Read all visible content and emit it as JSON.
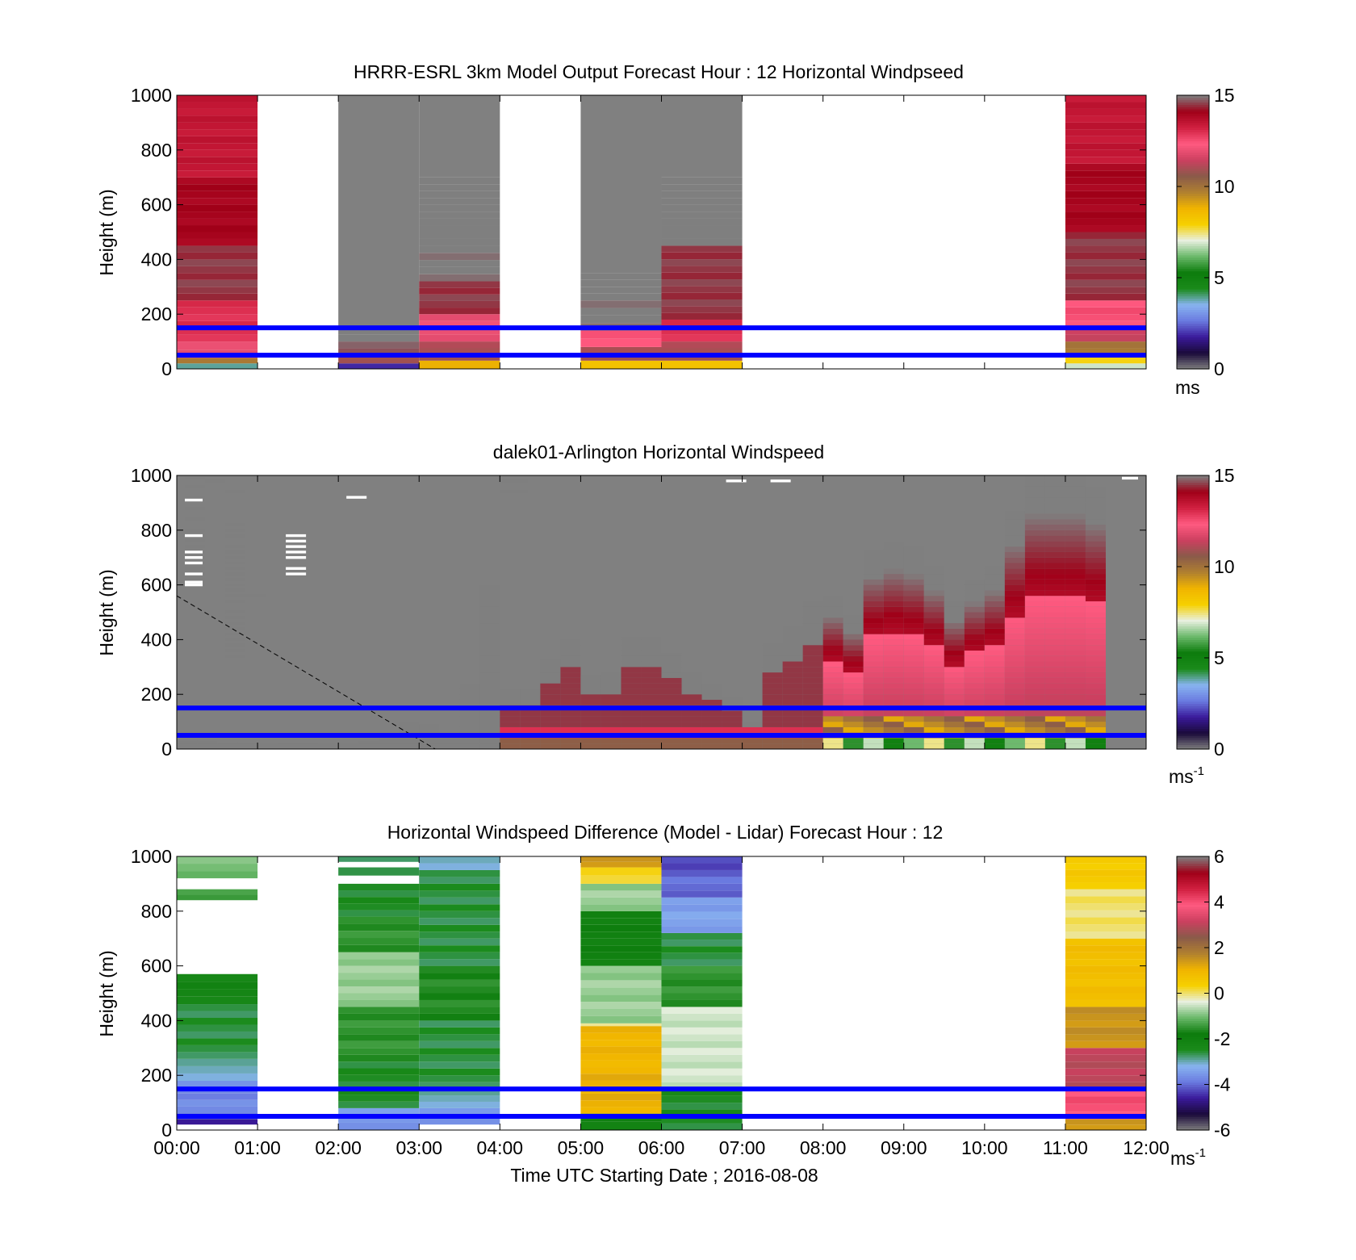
{
  "figure": {
    "xlabel": "Time UTC  Starting Date ; 2016-08-08",
    "x_ticks": [
      "00:00",
      "01:00",
      "02:00",
      "03:00",
      "04:00",
      "05:00",
      "06:00",
      "07:00",
      "08:00",
      "09:00",
      "10:00",
      "11:00",
      "12:00"
    ],
    "reference_lines_m": [
      150,
      50
    ],
    "reference_line_color": "#0000ff",
    "missing_color": "#808080"
  },
  "chart_data": [
    {
      "type": "heatmap",
      "title": "HRRR-ESRL 3km Model Output   Forecast Hour : 12 Horizontal Windpseed",
      "ylabel": "Height (m)",
      "ylim": [
        0,
        1000
      ],
      "y_ticks": [
        0,
        200,
        400,
        600,
        800,
        1000
      ],
      "colorbar": {
        "range": [
          0,
          15
        ],
        "ticks": [
          0,
          5,
          10,
          15
        ],
        "unit": "ms",
        "unit_sup": "",
        "colors": [
          "#7f7f7f",
          "#1a0a3a",
          "#3a1a9a",
          "#6a7ae0",
          "#88b4f0",
          "#1a8a1a",
          "#0c7c0c",
          "#6ab86a",
          "#e8f0e0",
          "#f6d000",
          "#f0b400",
          "#b08030",
          "#8a5a4a",
          "#cc4060",
          "#ff5a80",
          "#d02040",
          "#a00018",
          "#7f7f7f"
        ]
      },
      "columns": [
        {
          "hour": 0,
          "segments": [
            [
              0,
              20,
              4
            ],
            [
              20,
              40,
              10
            ],
            [
              40,
              100,
              12
            ],
            [
              100,
              250,
              13
            ],
            [
              250,
              450,
              14.5
            ],
            [
              450,
              700,
              14
            ],
            [
              700,
              1000,
              13.5
            ]
          ]
        },
        {
          "hour": 2,
          "missing_above": 150,
          "segments": [
            [
              0,
              20,
              2
            ],
            [
              20,
              50,
              11
            ],
            [
              50,
              100,
              14.8
            ],
            [
              100,
              150,
              15.5
            ]
          ]
        },
        {
          "hour": 3,
          "missing_above": 700,
          "segments": [
            [
              0,
              30,
              9
            ],
            [
              30,
              100,
              11
            ],
            [
              100,
              200,
              12
            ],
            [
              200,
              320,
              14.5
            ],
            [
              320,
              450,
              15
            ],
            [
              450,
              550,
              15.5
            ],
            [
              550,
              700,
              16.5
            ]
          ]
        },
        {
          "hour": 5,
          "missing_above": 350,
          "segments": [
            [
              0,
              30,
              8.5
            ],
            [
              30,
              80,
              11
            ],
            [
              80,
              140,
              12.5
            ],
            [
              140,
              250,
              15
            ],
            [
              250,
              350,
              16
            ]
          ]
        },
        {
          "hour": 6,
          "missing_above": 700,
          "segments": [
            [
              0,
              30,
              8.5
            ],
            [
              30,
              100,
              11
            ],
            [
              100,
              180,
              13
            ],
            [
              180,
              450,
              14.5
            ],
            [
              450,
              600,
              15.5
            ],
            [
              600,
              700,
              16
            ]
          ]
        },
        {
          "hour": 11,
          "segments": [
            [
              0,
              20,
              7
            ],
            [
              20,
              50,
              8
            ],
            [
              50,
              100,
              10
            ],
            [
              100,
              150,
              11.5
            ],
            [
              150,
              250,
              12.5
            ],
            [
              250,
              500,
              14.5
            ],
            [
              500,
              750,
              14
            ],
            [
              750,
              1000,
              13.5
            ]
          ]
        }
      ]
    },
    {
      "type": "heatmap",
      "title": "dalek01-Arlington  Horizontal Windspeed",
      "ylabel": "Height (m)",
      "ylim": [
        0,
        1000
      ],
      "y_ticks": [
        0,
        200,
        400,
        600,
        800,
        1000
      ],
      "colorbar": {
        "range": [
          0,
          15
        ],
        "ticks": [
          0,
          5,
          10,
          15
        ],
        "unit": "ms",
        "unit_sup": "-1",
        "colors": [
          "#7f7f7f",
          "#1a0a3a",
          "#3a1a9a",
          "#6a7ae0",
          "#88b4f0",
          "#1a8a1a",
          "#0c7c0c",
          "#6ab86a",
          "#e8f0e0",
          "#f6d000",
          "#f0b400",
          "#b08030",
          "#8a5a4a",
          "#cc4060",
          "#ff5a80",
          "#d02040",
          "#a00018",
          "#7f7f7f"
        ]
      },
      "profile_step_hours": 0.25,
      "profile_tops_m": [
        30,
        30,
        25,
        25,
        20,
        25,
        25,
        20,
        20,
        30,
        60,
        100,
        90,
        60,
        240,
        600,
        220,
        220,
        330,
        400,
        270,
        280,
        410,
        410,
        350,
        280,
        240,
        190,
        100,
        390,
        450,
        540,
        560,
        490,
        730,
        760,
        740,
        670,
        540,
        620,
        670,
        870,
        1000,
        1000,
        1000,
        960
      ],
      "upper_gates": [
        {
          "t0": 0.1,
          "t1": 0.35,
          "h": [
            990,
            960,
            920,
            880,
            840,
            800,
            780,
            760,
            740,
            720,
            700,
            680,
            660,
            640,
            620,
            600
          ]
        },
        {
          "t0": 0.35,
          "t1": 0.6,
          "h": [
            980
          ]
        },
        {
          "t0": 0.6,
          "t1": 0.85,
          "h": [
            940,
            820,
            800,
            780,
            740,
            720,
            700,
            680,
            660,
            640,
            620,
            600,
            580,
            560,
            540,
            500,
            480,
            460,
            440,
            420,
            400,
            380,
            360,
            340
          ]
        },
        {
          "t0": 0.85,
          "t1": 1.1,
          "h": [
            560
          ]
        },
        {
          "t0": 4.0,
          "t1": 4.35,
          "h": [
            980,
            940
          ]
        }
      ],
      "white_gates": [
        {
          "t0": 0.1,
          "t1": 0.32,
          "h": [
            910,
            780,
            720,
            700,
            680,
            640,
            610,
            600
          ]
        },
        {
          "t0": 1.35,
          "t1": 1.6,
          "h": [
            780,
            760,
            740,
            720,
            700,
            660,
            640
          ]
        },
        {
          "t0": 2.1,
          "t1": 2.35,
          "h": [
            920
          ]
        },
        {
          "t0": 6.8,
          "t1": 7.05,
          "h": [
            980
          ]
        },
        {
          "t0": 7.35,
          "t1": 7.6,
          "h": [
            980
          ]
        },
        {
          "t0": 11.7,
          "t1": 11.9,
          "h": [
            990
          ]
        }
      ],
      "diagonal_dashed_line": {
        "from": [
          0,
          560
        ],
        "to": [
          3.2,
          0
        ]
      }
    },
    {
      "type": "heatmap",
      "title": "Horizontal Windspeed Difference (Model - Lidar) Forecast Hour : 12",
      "ylabel": "Height (m)",
      "ylim": [
        0,
        1000
      ],
      "y_ticks": [
        0,
        200,
        400,
        600,
        800,
        1000
      ],
      "colorbar": {
        "range": [
          -6,
          6
        ],
        "ticks": [
          -6,
          -4,
          -2,
          0,
          2,
          4,
          6
        ],
        "unit": "ms",
        "unit_sup": "-1",
        "colors": [
          "#7f7f7f",
          "#1a0a3a",
          "#3a1a9a",
          "#6a7ae0",
          "#88b4f0",
          "#1a8a1a",
          "#0c7c0c",
          "#6ab86a",
          "#e8f0e0",
          "#f6d000",
          "#f0b400",
          "#b08030",
          "#8a5a4a",
          "#cc4060",
          "#ff5a80",
          "#d02040",
          "#a00018",
          "#7f7f7f"
        ]
      },
      "columns": [
        {
          "hour": 0,
          "segments": [
            [
              20,
              40,
              -4.5
            ],
            [
              40,
              180,
              -3.7
            ],
            [
              180,
              260,
              -3
            ],
            [
              260,
              460,
              -2.6
            ],
            [
              460,
              570,
              -2.2
            ],
            [
              840,
              880,
              -1.3
            ],
            [
              920,
              1000,
              -1
            ]
          ]
        },
        {
          "hour": 2,
          "segments": [
            [
              0,
              80,
              -3.5
            ],
            [
              80,
              250,
              -2.5
            ],
            [
              250,
              450,
              -1.5
            ],
            [
              450,
              650,
              -0.8
            ],
            [
              650,
              780,
              -1.5
            ],
            [
              780,
              900,
              -2.5
            ],
            [
              930,
              960,
              -2.5
            ],
            [
              980,
              1000,
              -2.6
            ]
          ]
        },
        {
          "hour": 3,
          "segments": [
            [
              20,
              80,
              -3.5
            ],
            [
              80,
              150,
              -3
            ],
            [
              150,
              400,
              -2.6
            ],
            [
              400,
              600,
              -1.6
            ],
            [
              600,
              950,
              -2.6
            ],
            [
              950,
              1000,
              -3
            ]
          ]
        },
        {
          "hour": 5,
          "segments": [
            [
              0,
              60,
              -2
            ],
            [
              60,
              230,
              1.1
            ],
            [
              230,
              380,
              1
            ],
            [
              380,
              390,
              0
            ],
            [
              390,
              600,
              -0.8
            ],
            [
              600,
              800,
              -2
            ],
            [
              800,
              900,
              -0.8
            ],
            [
              900,
              960,
              0.3
            ],
            [
              960,
              1000,
              1.5
            ]
          ]
        },
        {
          "hour": 6,
          "segments": [
            [
              0,
              150,
              -2.5
            ],
            [
              150,
              450,
              -0.5
            ],
            [
              450,
              600,
              -1.5
            ],
            [
              600,
              720,
              -2.6
            ],
            [
              720,
              850,
              -3.4
            ],
            [
              850,
              950,
              -4
            ],
            [
              950,
              1000,
              -4.2
            ]
          ]
        },
        {
          "hour": 11,
          "segments": [
            [
              0,
              40,
              1.5
            ],
            [
              40,
              150,
              4
            ],
            [
              150,
              300,
              3
            ],
            [
              300,
              450,
              1.5
            ],
            [
              450,
              700,
              0.8
            ],
            [
              700,
              880,
              0
            ],
            [
              880,
              1000,
              0.5
            ]
          ]
        }
      ]
    }
  ]
}
